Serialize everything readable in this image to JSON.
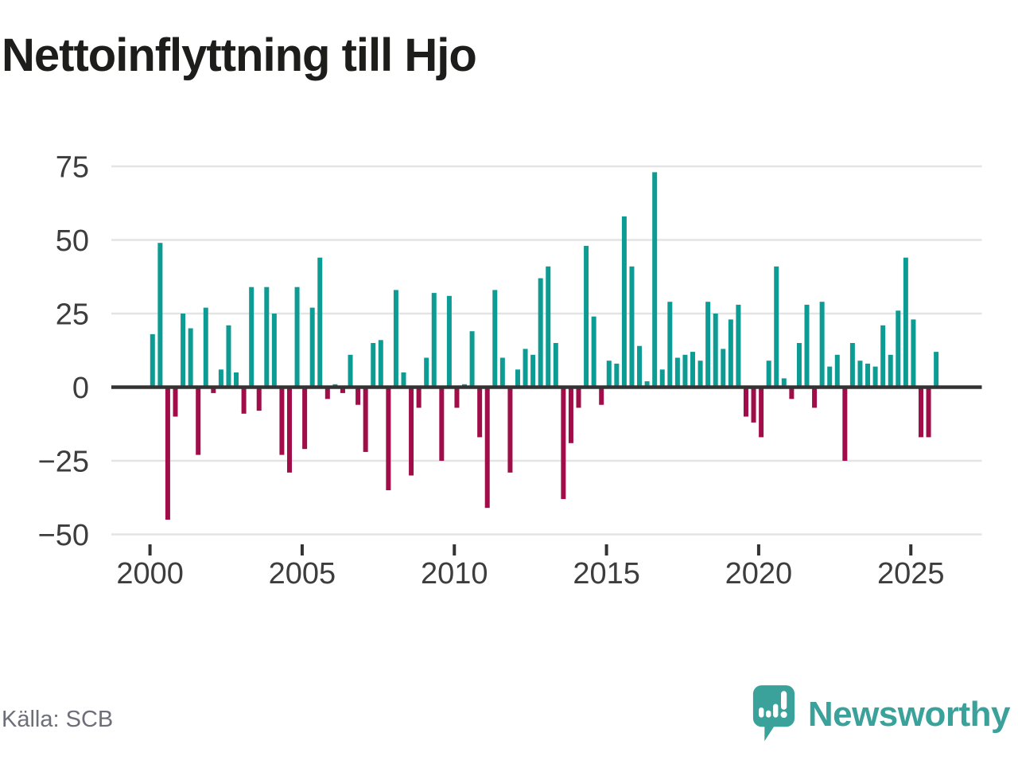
{
  "title": "Nettoinflyttning till Hjo",
  "source": "Källa: SCB",
  "branding": {
    "name": "Newsworthy",
    "icon": "speech-bubble-bar-chart-icon"
  },
  "colors": {
    "positive_bar": "#0d9c94",
    "negative_bar": "#a00d49",
    "gridline": "#e4e4e4",
    "zero_line": "#333333",
    "axis_text": "#3d3d3d",
    "title_text": "#1d1d1b",
    "source_text": "#6e6e78",
    "brand_teal": "#3aa29a"
  },
  "chart_data": {
    "type": "bar",
    "title": "Nettoinflyttning till Hjo",
    "xlabel": "",
    "ylabel": "",
    "periodicity": "quarterly",
    "start_year": 2000,
    "end_year": 2025,
    "ylim": [
      -50,
      75
    ],
    "grid": true,
    "y_ticks": [
      75,
      50,
      25,
      0,
      -25,
      -50
    ],
    "y_tick_labels": [
      "75",
      "50",
      "25",
      "0",
      "−25",
      "−50"
    ],
    "x_tick_years": [
      2000,
      2005,
      2010,
      2015,
      2020,
      2025
    ],
    "x_tick_labels": [
      "2000",
      "2005",
      "2010",
      "2015",
      "2020",
      "2025"
    ],
    "values": [
      18,
      49,
      -45,
      -10,
      25,
      20,
      -23,
      27,
      -2,
      6,
      21,
      5,
      -9,
      34,
      -8,
      34,
      25,
      -23,
      -29,
      34,
      -21,
      27,
      44,
      -4,
      1,
      -2,
      11,
      -6,
      -22,
      15,
      16,
      -35,
      33,
      5,
      -30,
      -7,
      10,
      32,
      -25,
      31,
      -7,
      1,
      19,
      -17,
      -41,
      33,
      10,
      -29,
      6,
      13,
      11,
      37,
      41,
      15,
      -38,
      -19,
      -7,
      48,
      24,
      -6,
      9,
      8,
      58,
      41,
      14,
      2,
      73,
      6,
      29,
      10,
      11,
      12,
      9,
      29,
      25,
      13,
      23,
      28,
      -10,
      -12,
      -17,
      9,
      41,
      3,
      -4,
      15,
      28,
      -7,
      29,
      7,
      11,
      -25,
      15,
      9,
      8,
      7,
      21,
      11,
      26,
      44,
      23,
      -17,
      -17,
      12
    ]
  }
}
